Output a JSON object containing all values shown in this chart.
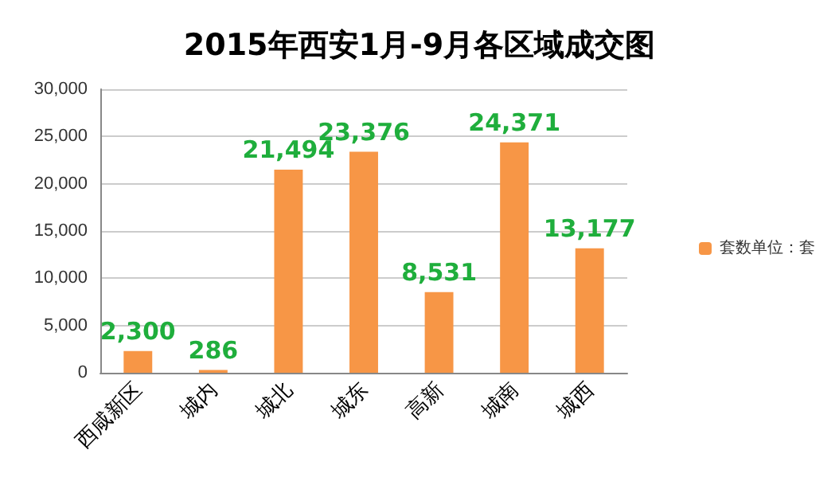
{
  "chart_data": {
    "type": "bar",
    "title": "2015年西安1月-9月各区域成交图",
    "categories": [
      "西咸新区",
      "城内",
      "城北",
      "城东",
      "高新",
      "城南",
      "城西"
    ],
    "series": [
      {
        "name": "套数单位：套",
        "color": "#f79646",
        "values": [
          2300,
          286,
          21494,
          23376,
          8531,
          24371,
          13177
        ],
        "value_labels": [
          "2,300",
          "286",
          "21,494",
          "23,376",
          "8,531",
          "24,371",
          "13,177"
        ]
      }
    ],
    "ylim": [
      0,
      30000
    ],
    "yticks": [
      0,
      {
        "value": 5000,
        "label": "5,000"
      },
      {
        "value": 10000,
        "label": "10,000"
      },
      {
        "value": 15000,
        "label": "15,000"
      },
      {
        "value": 20000,
        "label": "20,000"
      },
      {
        "value": 25000,
        "label": "25,000"
      },
      {
        "value": 30000,
        "label": "30,000"
      }
    ],
    "grid": "y",
    "legend": "right"
  }
}
